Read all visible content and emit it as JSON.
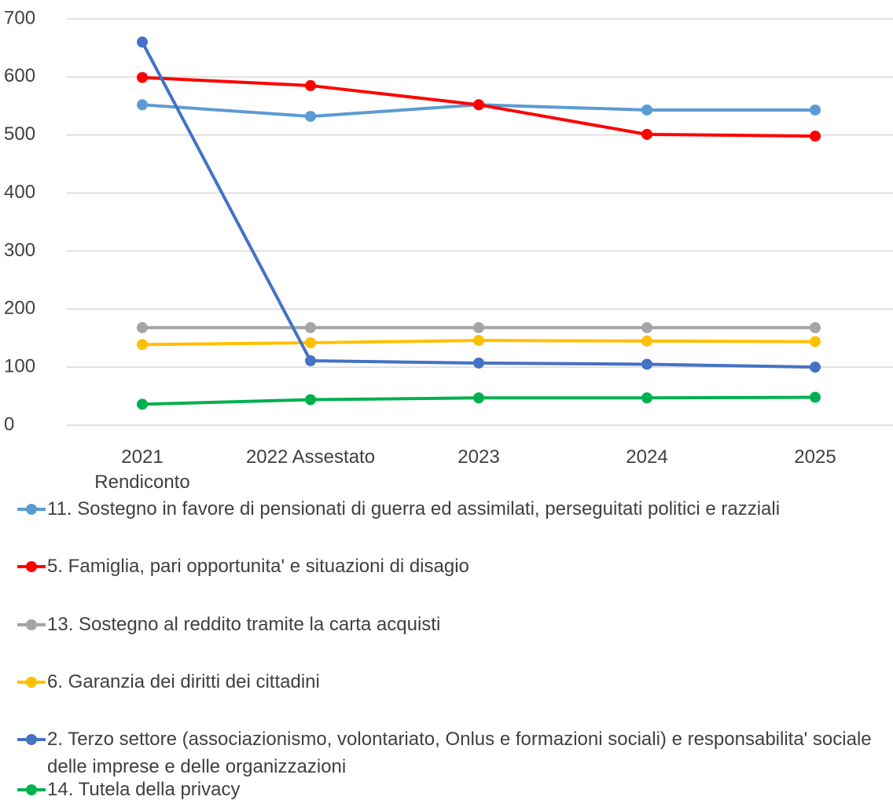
{
  "chart_data": {
    "type": "line",
    "categories": [
      "2021 Rendiconto",
      "2022 Assestato",
      "2023",
      "2024",
      "2025"
    ],
    "series": [
      {
        "name": "11. Sostegno in favore di pensionati di guerra ed assimilati, perseguitati politici e razziali",
        "color": "#5b9bd5",
        "values": [
          552,
          532,
          552,
          543,
          543
        ]
      },
      {
        "name": "5. Famiglia, pari opportunita' e situazioni di disagio",
        "color": "#ff0000",
        "values": [
          599,
          585,
          552,
          501,
          498
        ]
      },
      {
        "name": "13. Sostegno al reddito tramite la carta acquisti",
        "color": "#a5a5a5",
        "values": [
          168,
          168,
          168,
          168,
          168
        ]
      },
      {
        "name": "6. Garanzia dei diritti dei cittadini",
        "color": "#ffc000",
        "values": [
          139,
          142,
          146,
          145,
          144
        ]
      },
      {
        "name": "2. Terzo settore (associazionismo, volontariato, Onlus e formazioni sociali) e responsabilita' sociale delle imprese e delle organizzazioni",
        "color": "#4472c4",
        "values": [
          660,
          111,
          107,
          105,
          100
        ]
      },
      {
        "name": "14. Tutela della privacy",
        "color": "#00b050",
        "values": [
          36,
          44,
          47,
          47,
          48
        ]
      }
    ],
    "ylim": [
      0,
      700
    ],
    "yticks": [
      0,
      100,
      200,
      300,
      400,
      500,
      600,
      700
    ],
    "grid": true,
    "legend": "bottom"
  }
}
